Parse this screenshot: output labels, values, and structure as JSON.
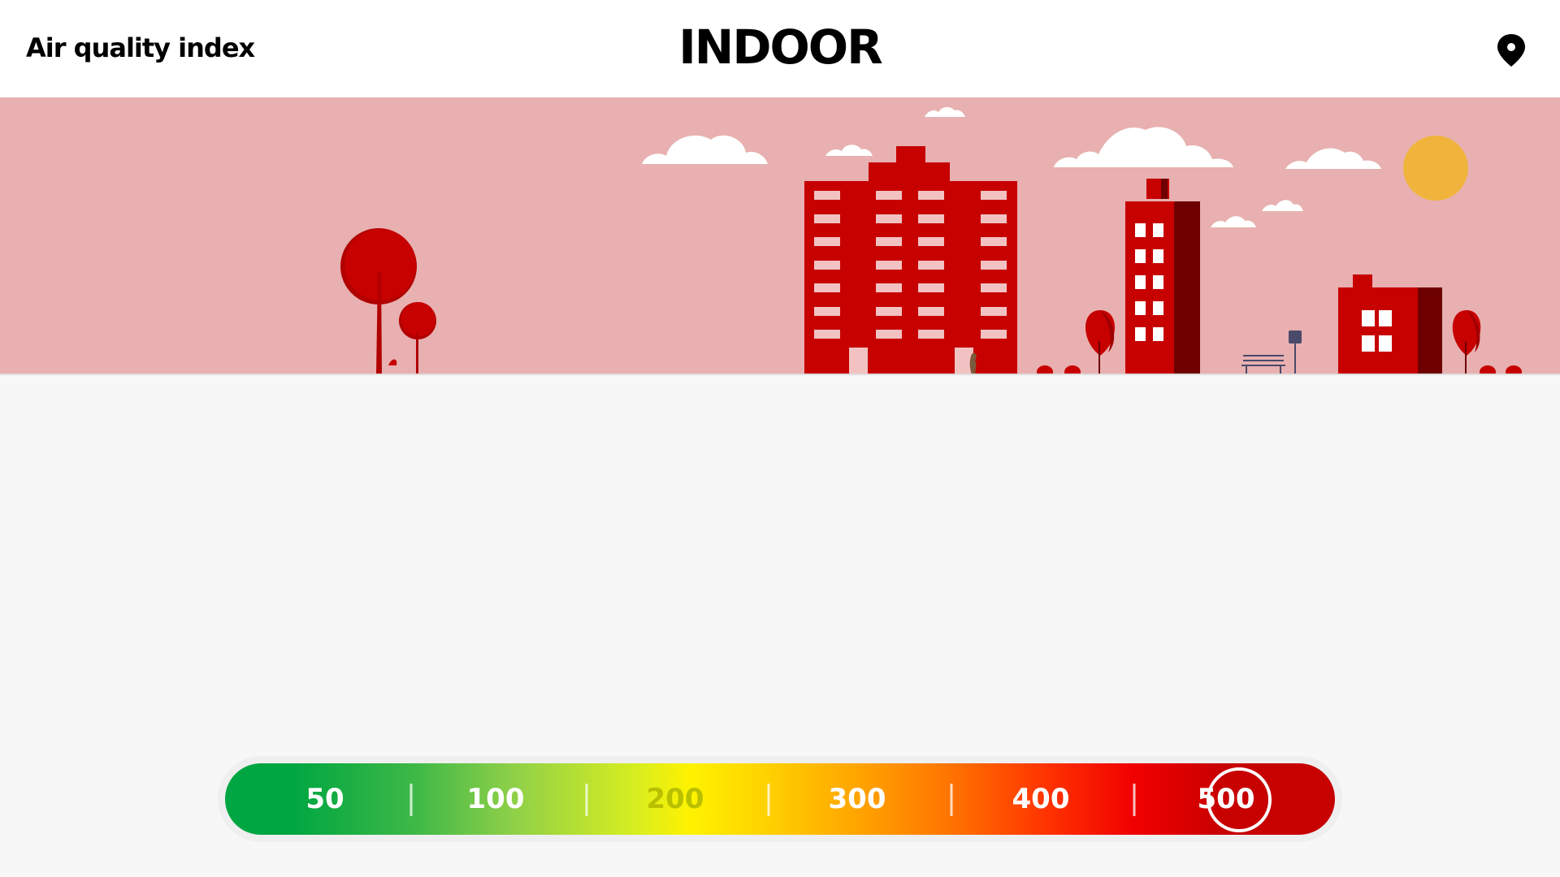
{
  "header": {
    "app_title": "Air quality index",
    "mode_title": "INDOOR",
    "location_icon": "location-pin-icon"
  },
  "scene": {
    "description_icons": [
      "cloud-icon",
      "sun-icon",
      "tree-icon",
      "building-icon",
      "bench-icon",
      "sign-icon"
    ],
    "colors": {
      "sky": "#e8b0b0",
      "building": "#c70000",
      "building_shadow": "#6e0000",
      "window": "#f2c2c2",
      "sun": "#f0b43c",
      "cloud": "#ffffff"
    }
  },
  "aqi_scale": {
    "levels": [
      {
        "label": "50"
      },
      {
        "label": "100"
      },
      {
        "label": "200"
      },
      {
        "label": "300"
      },
      {
        "label": "400"
      },
      {
        "label": "500"
      }
    ],
    "selected": "500",
    "colors": {
      "good": "#00a641",
      "moderate": "#fff200",
      "unhealthy": "#ff7600",
      "hazardous": "#c70000"
    }
  }
}
